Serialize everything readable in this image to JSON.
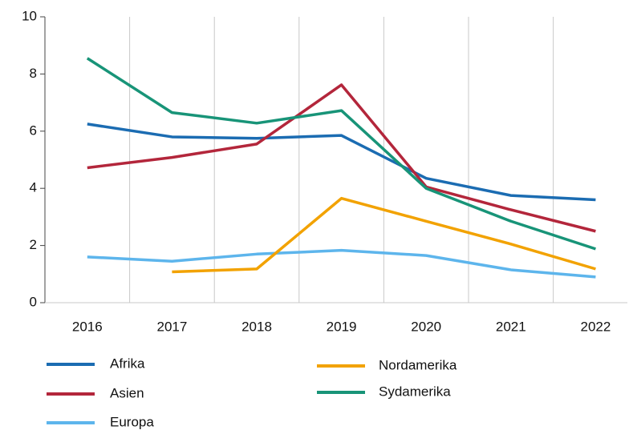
{
  "chart_data": {
    "type": "line",
    "categories": [
      "2016",
      "2017",
      "2018",
      "2019",
      "2020",
      "2021",
      "2022"
    ],
    "series": [
      {
        "name": "Afrika",
        "color": "#1b6cb2",
        "values": [
          6.25,
          5.8,
          5.75,
          5.85,
          4.35,
          3.75,
          3.6
        ]
      },
      {
        "name": "Asien",
        "color": "#b3263b",
        "values": [
          4.72,
          5.08,
          5.55,
          7.62,
          4.05,
          3.25,
          2.5
        ]
      },
      {
        "name": "Europa",
        "color": "#5db5ec",
        "values": [
          1.6,
          1.45,
          1.7,
          1.83,
          1.65,
          1.15,
          0.9
        ]
      },
      {
        "name": "Nordamerika",
        "color": "#f2a200",
        "values": [
          null,
          1.08,
          1.18,
          3.65,
          2.85,
          2.05,
          1.18
        ]
      },
      {
        "name": "Sydamerika",
        "color": "#189478",
        "values": [
          8.55,
          6.65,
          6.28,
          6.72,
          4.0,
          2.85,
          1.88
        ]
      }
    ],
    "ylim": [
      0,
      10
    ],
    "yticks": [
      0,
      2,
      4,
      6,
      8,
      10
    ],
    "grid": true,
    "legend": "bottom"
  }
}
